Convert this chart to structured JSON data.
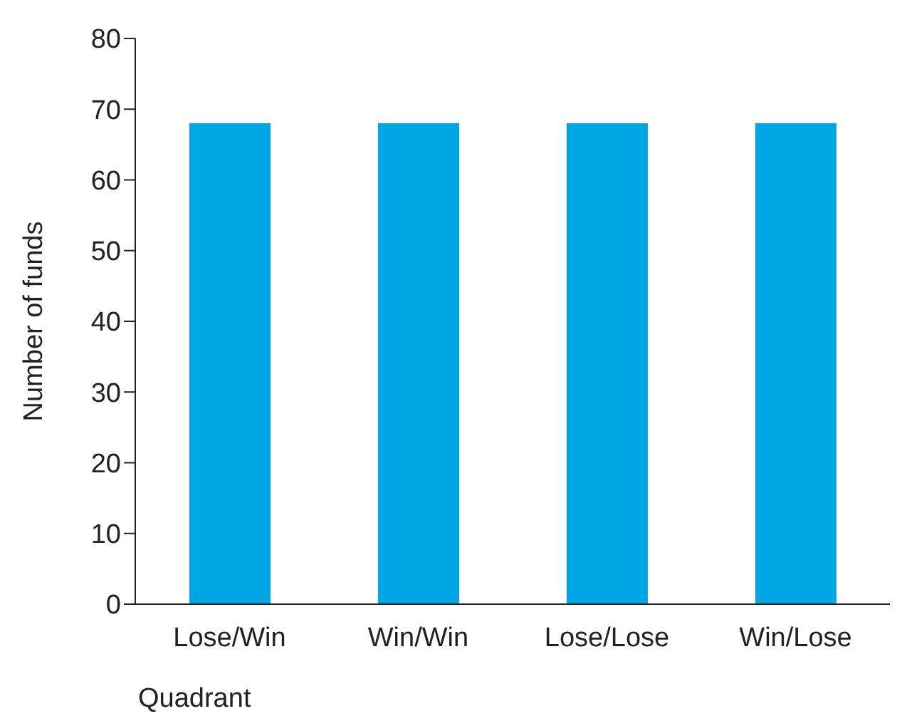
{
  "chart_data": {
    "type": "bar",
    "xlabel": "Quadrant",
    "ylabel": "Number of funds",
    "categories": [
      "Lose/Win",
      "Win/Win",
      "Lose/Lose",
      "Win/Lose"
    ],
    "values": [
      68,
      68,
      68,
      68
    ],
    "color": "#00a5e3",
    "ylim": [
      0,
      80
    ],
    "yticks": [
      0,
      10,
      20,
      30,
      40,
      50,
      60,
      70,
      80
    ],
    "grid": false,
    "legend": false
  }
}
